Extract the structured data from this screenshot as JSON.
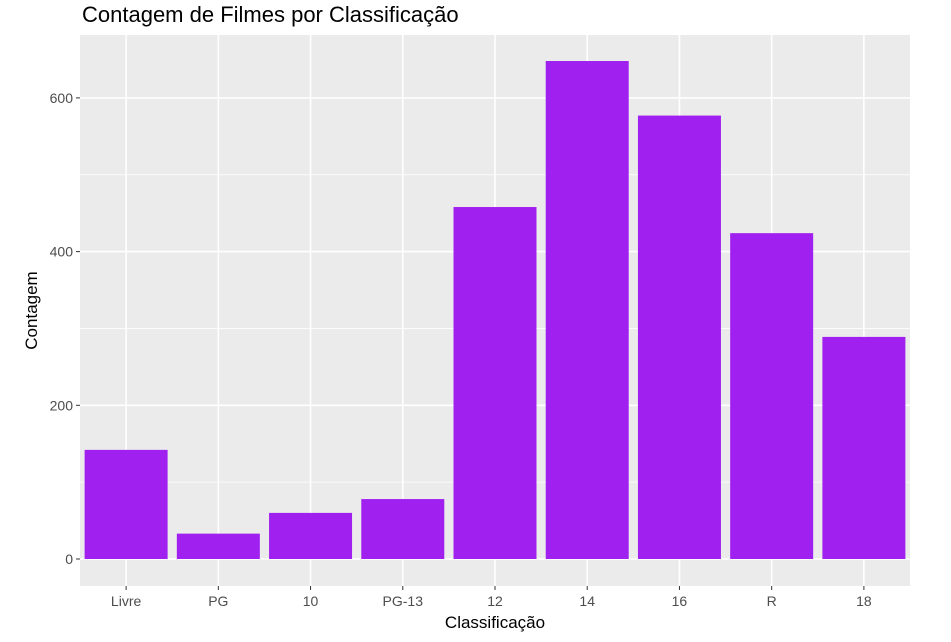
{
  "chart_data": {
    "type": "bar",
    "title": "Contagem de Filmes por Classificação",
    "xlabel": "Classificação",
    "ylabel": "Contagem",
    "categories": [
      "Livre",
      "PG",
      "10",
      "PG-13",
      "12",
      "14",
      "16",
      "R",
      "18"
    ],
    "values": [
      142,
      33,
      60,
      78,
      458,
      648,
      577,
      424,
      289
    ],
    "ylim": [
      0,
      680
    ],
    "yticks": [
      0,
      200,
      400,
      600
    ],
    "bar_color": "#A020F0",
    "panel_color": "#EBEBEB",
    "grid_color": "#FFFFFF",
    "grid": true,
    "legend": "none"
  }
}
